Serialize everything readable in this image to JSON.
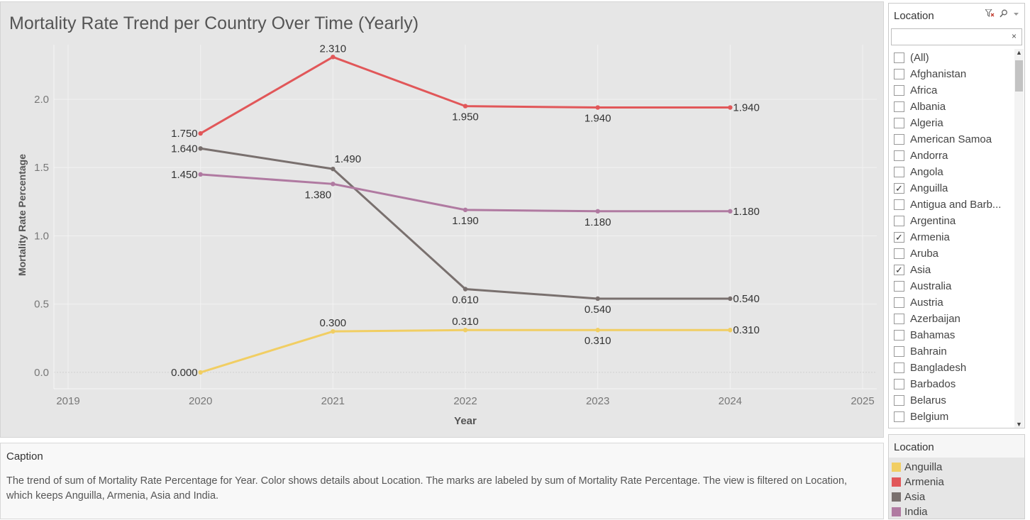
{
  "chart_title": "Mortality Rate Trend per Country Over Time (Yearly)",
  "chart_data": {
    "type": "line",
    "title": "Mortality Rate Trend per Country Over Time (Yearly)",
    "xlabel": "Year",
    "ylabel": "Mortality Rate Percentage",
    "x_ticks": [
      "2019",
      "2020",
      "2021",
      "2022",
      "2023",
      "2024",
      "2025"
    ],
    "y_ticks": [
      "0.0",
      "0.5",
      "1.0",
      "1.5",
      "2.0"
    ],
    "xlim": [
      2019,
      2025
    ],
    "ylim": [
      -0.12,
      2.4
    ],
    "grid": true,
    "x": [
      2020,
      2021,
      2022,
      2023,
      2024
    ],
    "series": [
      {
        "name": "Armenia",
        "color": "#e15759",
        "values": [
          1.75,
          2.31,
          1.95,
          1.94,
          1.94
        ],
        "labels": [
          "1.750",
          "2.310",
          "1.950",
          "1.940",
          "1.940"
        ]
      },
      {
        "name": "Asia",
        "color": "#79706e",
        "values": [
          1.64,
          1.49,
          0.61,
          0.54,
          0.54
        ],
        "labels": [
          "1.640",
          "1.490",
          "0.610",
          "0.540",
          "0.540"
        ]
      },
      {
        "name": "India",
        "color": "#b07aa1",
        "values": [
          1.45,
          1.38,
          1.19,
          1.18,
          1.18
        ],
        "labels": [
          "1.450",
          "1.380",
          "1.190",
          "1.180",
          "1.180"
        ]
      },
      {
        "name": "Anguilla",
        "color": "#f1ce63",
        "values": [
          0.0,
          0.3,
          0.31,
          0.31,
          0.31
        ],
        "labels": [
          "0.000",
          "0.300",
          "0.310",
          "0.310",
          "0.310"
        ]
      }
    ]
  },
  "filter": {
    "title": "Location",
    "search_value": "",
    "clear_icon": "×",
    "items": [
      {
        "label": "(All)",
        "checked": false
      },
      {
        "label": "Afghanistan",
        "checked": false
      },
      {
        "label": "Africa",
        "checked": false
      },
      {
        "label": "Albania",
        "checked": false
      },
      {
        "label": "Algeria",
        "checked": false
      },
      {
        "label": "American Samoa",
        "checked": false
      },
      {
        "label": "Andorra",
        "checked": false
      },
      {
        "label": "Angola",
        "checked": false
      },
      {
        "label": "Anguilla",
        "checked": true
      },
      {
        "label": "Antigua and Barb...",
        "checked": false
      },
      {
        "label": "Argentina",
        "checked": false
      },
      {
        "label": "Armenia",
        "checked": true
      },
      {
        "label": "Aruba",
        "checked": false
      },
      {
        "label": "Asia",
        "checked": true
      },
      {
        "label": "Australia",
        "checked": false
      },
      {
        "label": "Austria",
        "checked": false
      },
      {
        "label": "Azerbaijan",
        "checked": false
      },
      {
        "label": "Bahamas",
        "checked": false
      },
      {
        "label": "Bahrain",
        "checked": false
      },
      {
        "label": "Bangladesh",
        "checked": false
      },
      {
        "label": "Barbados",
        "checked": false
      },
      {
        "label": "Belarus",
        "checked": false
      },
      {
        "label": "Belgium",
        "checked": false
      }
    ]
  },
  "legend": {
    "title": "Location",
    "items": [
      {
        "label": "Anguilla",
        "color": "#f1ce63"
      },
      {
        "label": "Armenia",
        "color": "#e15759"
      },
      {
        "label": "Asia",
        "color": "#79706e"
      },
      {
        "label": "India",
        "color": "#b07aa1"
      }
    ]
  },
  "caption": {
    "title": "Caption",
    "text": "The trend of sum of Mortality Rate Percentage for Year.  Color shows details about Location.  The marks are labeled by sum of Mortality Rate Percentage. The view is filtered on Location, which keeps Anguilla, Armenia, Asia and India."
  }
}
